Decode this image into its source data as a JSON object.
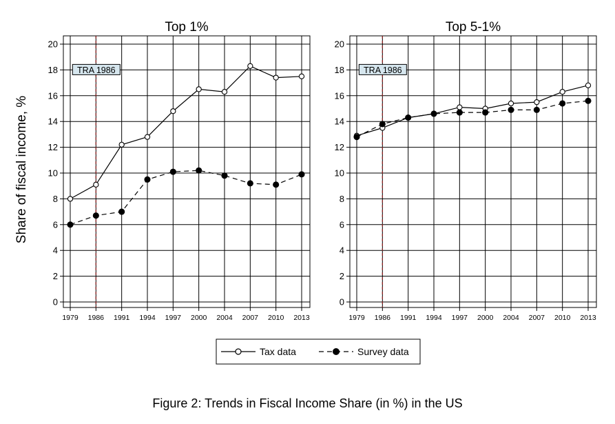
{
  "y_axis_label": "Share of fiscal income, %",
  "caption": "Figure 2: Trends in Fiscal Income Share (in %) in the US",
  "annotation_label": "TRA 1986",
  "legend": {
    "tax": "Tax data",
    "survey": "Survey data"
  },
  "chart_data": [
    {
      "type": "line",
      "title": "Top 1%",
      "categories": [
        "1979",
        "1986",
        "1991",
        "1994",
        "1997",
        "2000",
        "2004",
        "2007",
        "2010",
        "2013"
      ],
      "series": [
        {
          "name": "Tax data",
          "marker": "hollow-circle",
          "line": "solid",
          "values": [
            8.0,
            9.1,
            12.2,
            12.8,
            14.8,
            16.5,
            16.3,
            18.3,
            17.4,
            17.5
          ]
        },
        {
          "name": "Survey data",
          "marker": "filled-circle",
          "line": "dashed",
          "values": [
            6.0,
            6.7,
            7.0,
            9.5,
            10.1,
            10.2,
            9.8,
            9.2,
            9.1,
            9.9
          ]
        }
      ],
      "ylim": [
        0,
        20
      ],
      "yticks": [
        0,
        2,
        4,
        6,
        8,
        10,
        12,
        14,
        16,
        18,
        20
      ],
      "annotation": {
        "label": "TRA 1986",
        "x": "1986",
        "style": "dashed-vertical-line"
      },
      "grid": true,
      "xlabel": "",
      "ylabel": "Share of fiscal income, %"
    },
    {
      "type": "line",
      "title": "Top 5-1%",
      "categories": [
        "1979",
        "1986",
        "1991",
        "1994",
        "1997",
        "2000",
        "2004",
        "2007",
        "2010",
        "2013"
      ],
      "series": [
        {
          "name": "Tax data",
          "marker": "hollow-circle",
          "line": "solid",
          "values": [
            12.9,
            13.5,
            14.3,
            14.6,
            15.1,
            15.0,
            15.4,
            15.5,
            16.3,
            16.8
          ]
        },
        {
          "name": "Survey data",
          "marker": "filled-circle",
          "line": "dashed",
          "values": [
            12.8,
            13.8,
            14.3,
            14.6,
            14.7,
            14.7,
            14.9,
            14.9,
            15.4,
            15.6
          ]
        }
      ],
      "ylim": [
        0,
        20
      ],
      "yticks": [
        0,
        2,
        4,
        6,
        8,
        10,
        12,
        14,
        16,
        18,
        20
      ],
      "annotation": {
        "label": "TRA 1986",
        "x": "1986",
        "style": "dashed-vertical-line"
      },
      "grid": true,
      "xlabel": "",
      "ylabel": ""
    }
  ],
  "colors": {
    "annotation_line": "#8b1a1a",
    "annotation_box": "#d6e6ee",
    "grid": "#000000",
    "series": "#000000"
  }
}
